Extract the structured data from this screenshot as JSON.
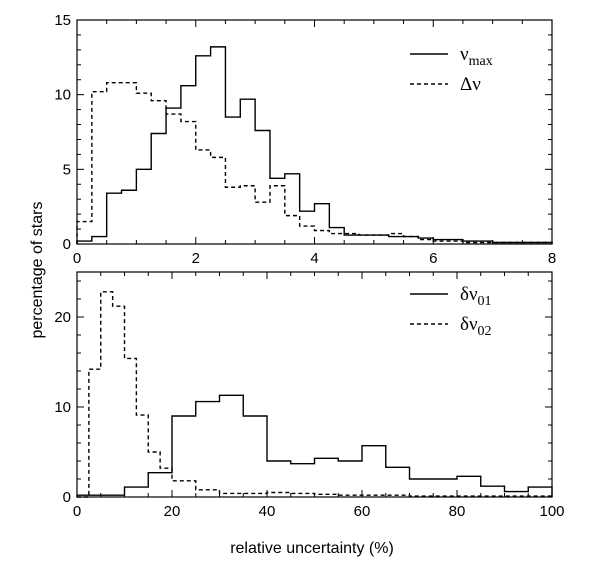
{
  "figure": {
    "ylabel": "percentage of stars",
    "xlabel": "relative uncertainty (%)"
  },
  "chart_data": [
    {
      "type": "area",
      "xlim": [
        0,
        8
      ],
      "ylim": [
        0,
        15
      ],
      "xticks": [
        0,
        2,
        4,
        6,
        8
      ],
      "yticks": [
        0,
        5,
        10,
        15
      ],
      "legend_position": "top-right",
      "series": [
        {
          "name": "νmax",
          "legend_main": "ν",
          "legend_sub": "max",
          "style": "solid",
          "bin_edges": [
            0,
            0.25,
            0.5,
            0.75,
            1.0,
            1.25,
            1.5,
            1.75,
            2.0,
            2.25,
            2.5,
            2.75,
            3.0,
            3.25,
            3.5,
            3.75,
            4.0,
            4.25,
            4.5,
            4.75,
            5.0,
            5.25,
            5.5,
            5.75,
            6.0,
            6.25,
            6.5,
            6.75,
            7.0,
            7.25,
            7.5,
            7.75,
            8.0
          ],
          "values": [
            0.2,
            0.5,
            3.4,
            3.6,
            5.0,
            7.4,
            9.1,
            10.6,
            12.6,
            13.2,
            8.5,
            9.7,
            7.6,
            4.4,
            4.7,
            2.2,
            2.7,
            1.1,
            0.6,
            0.6,
            0.6,
            0.5,
            0.5,
            0.4,
            0.3,
            0.3,
            0.2,
            0.2,
            0.1,
            0.1,
            0.1,
            0.1
          ]
        },
        {
          "name": "Δν",
          "legend_main": "Δν",
          "legend_sub": "",
          "style": "dashed",
          "bin_edges": [
            0,
            0.25,
            0.5,
            0.75,
            1.0,
            1.25,
            1.5,
            1.75,
            2.0,
            2.25,
            2.5,
            2.75,
            3.0,
            3.25,
            3.5,
            3.75,
            4.0,
            4.25,
            4.5,
            4.75,
            5.0,
            5.25,
            5.5,
            5.75,
            6.0,
            6.25,
            6.5,
            6.75,
            7.0,
            7.25,
            7.5,
            7.75,
            8.0
          ],
          "values": [
            1.5,
            10.2,
            10.8,
            10.8,
            10.1,
            9.6,
            8.7,
            8.2,
            6.3,
            5.8,
            3.8,
            3.9,
            2.8,
            3.9,
            1.9,
            1.2,
            0.9,
            0.7,
            0.7,
            0.6,
            0.6,
            0.7,
            0.5,
            0.3,
            0.2,
            0.2,
            0.1,
            0.1,
            0.1,
            0.1,
            0.1,
            0.1
          ]
        }
      ]
    },
    {
      "type": "area",
      "xlim": [
        0,
        100
      ],
      "ylim": [
        0,
        25
      ],
      "xticks": [
        0,
        20,
        40,
        60,
        80,
        100
      ],
      "yticks": [
        0,
        10,
        20
      ],
      "legend_position": "top-right",
      "series": [
        {
          "name": "δν01",
          "legend_main": "δν",
          "legend_sub": "01",
          "style": "solid",
          "bin_edges": [
            0,
            5,
            10,
            15,
            20,
            25,
            30,
            35,
            40,
            45,
            50,
            55,
            60,
            65,
            70,
            75,
            80,
            85,
            90,
            95,
            100
          ],
          "values": [
            0.2,
            0.2,
            1.1,
            2.7,
            9.0,
            10.6,
            11.3,
            9.0,
            4.0,
            3.7,
            4.3,
            4.0,
            5.7,
            3.3,
            2.0,
            2.0,
            2.3,
            1.2,
            0.6,
            1.1
          ]
        },
        {
          "name": "δν02",
          "legend_main": "δν",
          "legend_sub": "02",
          "style": "dashed",
          "bin_edges": [
            0,
            2.5,
            5,
            7.5,
            10,
            12.5,
            15,
            17.5,
            20,
            25,
            30,
            35,
            40,
            45,
            50,
            55,
            60,
            65,
            70,
            75,
            80,
            85,
            90,
            95,
            100
          ],
          "values": [
            0.0,
            14.2,
            22.8,
            21.2,
            15.4,
            9.1,
            5.0,
            3.2,
            1.8,
            0.8,
            0.4,
            0.4,
            0.5,
            0.4,
            0.3,
            0.2,
            0.2,
            0.2,
            0.1,
            0.1,
            0.1,
            0.1,
            0.1,
            0.1
          ]
        }
      ]
    }
  ]
}
